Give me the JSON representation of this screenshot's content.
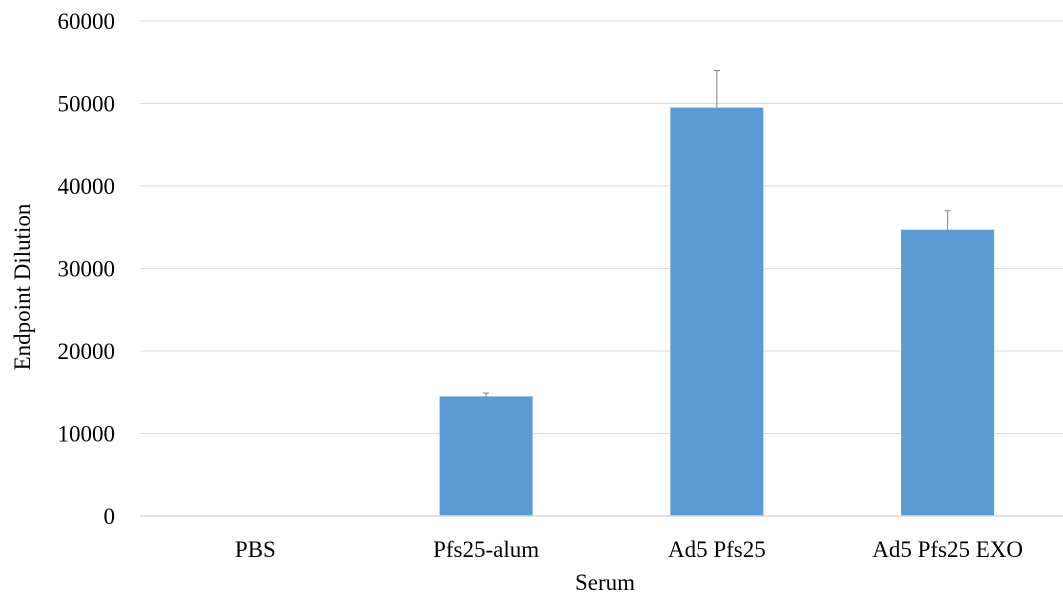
{
  "chart_data": {
    "type": "bar",
    "title": "",
    "xlabel": "Serum",
    "ylabel": "Endpoint Dilution",
    "categories": [
      "PBS",
      "Pfs25-alum",
      "Ad5 Pfs25",
      "Ad5 Pfs25 EXO"
    ],
    "values": [
      0,
      14500,
      49500,
      34700
    ],
    "error_upper": [
      0,
      400,
      4500,
      2300
    ],
    "ylim": [
      0,
      60000
    ],
    "yticks": [
      0,
      10000,
      20000,
      30000,
      40000,
      50000,
      60000
    ],
    "ytick_labels": [
      "0",
      "10000",
      "20000",
      "30000",
      "40000",
      "50000",
      "60000"
    ],
    "grid": true,
    "legend": "none",
    "colors": {
      "bar": "#5b9bd5",
      "grid": "#d9d9d9",
      "axis": "#d9d9d9",
      "error_bar": "#7f7f7f"
    }
  }
}
